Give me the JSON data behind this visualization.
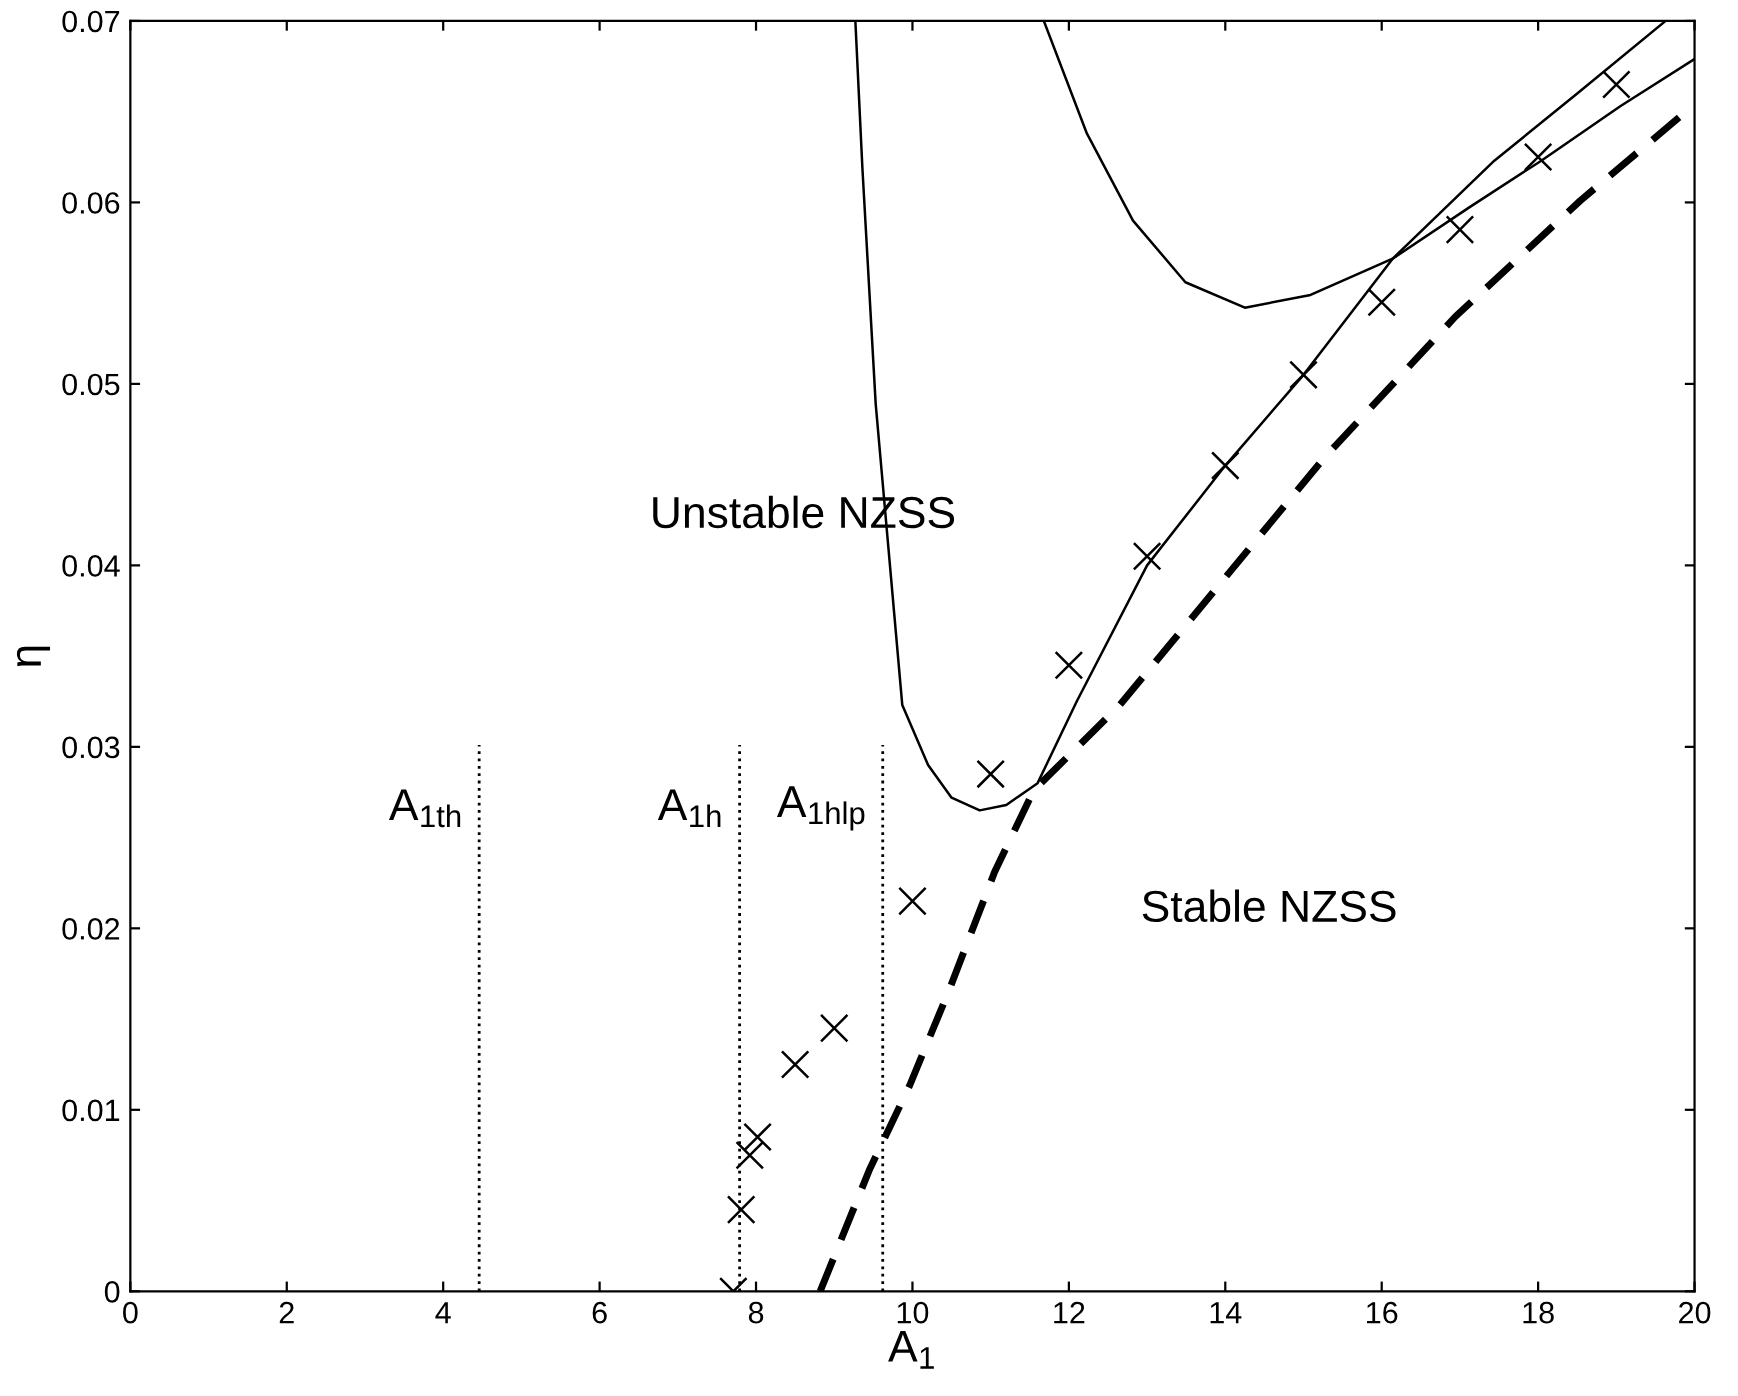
{
  "chart_data": {
    "type": "line",
    "xlabel": "A$_{1}$",
    "ylabel": "η",
    "xlim": [
      0,
      20
    ],
    "ylim": [
      0,
      0.07
    ],
    "xticks": [
      0,
      2,
      4,
      6,
      8,
      10,
      12,
      14,
      16,
      18,
      20
    ],
    "yticks": [
      0,
      0.01,
      0.02,
      0.03,
      0.04,
      0.05,
      0.06,
      0.07
    ],
    "grid": false,
    "legend": false,
    "series": [
      {
        "color": "#000000",
        "marker": "none",
        "line_style": "solid",
        "x": [
          9.27,
          9.36,
          9.53,
          9.87,
          10.2,
          10.5,
          10.86,
          11.2,
          11.6,
          12.1,
          13.0,
          14.0,
          15.0,
          16.14,
          17.44,
          18.5,
          19.63
        ],
        "values": [
          0.07,
          0.0619,
          0.0489,
          0.0323,
          0.029,
          0.0272,
          0.0265,
          0.0268,
          0.028,
          0.0325,
          0.04,
          0.0455,
          0.0505,
          0.0569,
          0.0623,
          0.066,
          0.07
        ]
      },
      {
        "color": "#000000",
        "marker": "none",
        "line_style": "solid",
        "x": [
          11.68,
          12.23,
          12.82,
          13.49,
          14.25,
          15.09,
          16.14,
          17.11,
          18.04,
          19.05,
          20.0
        ],
        "values": [
          0.07,
          0.0638,
          0.059,
          0.0556,
          0.0542,
          0.0549,
          0.0569,
          0.0597,
          0.0623,
          0.0653,
          0.0679
        ]
      },
      {
        "color": "#000000",
        "marker": "none",
        "line_style": "dashed",
        "x": [
          8.82,
          9.45,
          9.96,
          10.46,
          11.05,
          11.55,
          12.65,
          15.26,
          16.94,
          18.54,
          20.0
        ],
        "values": [
          0,
          0.0067,
          0.0113,
          0.0165,
          0.0231,
          0.0276,
          0.0323,
          0.0459,
          0.0537,
          0.0601,
          0.0654
        ]
      },
      {
        "type": "scatter",
        "color": "#000000",
        "marker": "cross",
        "x": [
          7.71,
          7.81,
          7.92,
          8.02,
          8.5,
          9.0,
          10.0,
          11.0,
          12.0,
          13.0,
          14.0,
          15.0,
          16.0,
          17.0,
          18.0,
          19.0
        ],
        "values": [
          0,
          0.0045,
          0.0075,
          0.0085,
          0.0125,
          0.0145,
          0.0215,
          0.0285,
          0.0345,
          0.0405,
          0.0455,
          0.0505,
          0.0545,
          0.0585,
          0.0625,
          0.0665
        ]
      }
    ],
    "ref_lines": [
      {
        "axis": "x",
        "value": 4.46,
        "label": "A$_{1th}$",
        "line_style": "dotted",
        "color": "#000000"
      },
      {
        "axis": "x",
        "value": 7.79,
        "label": "A$_{1h}$",
        "line_style": "dotted",
        "color": "#000000"
      },
      {
        "axis": "x",
        "value": 9.62,
        "label": "A$_{1hlp}$",
        "line_style": "dotted",
        "color": "#000000"
      }
    ],
    "annotations": [
      "Unstable NZSS",
      "Stable NZSS"
    ]
  }
}
